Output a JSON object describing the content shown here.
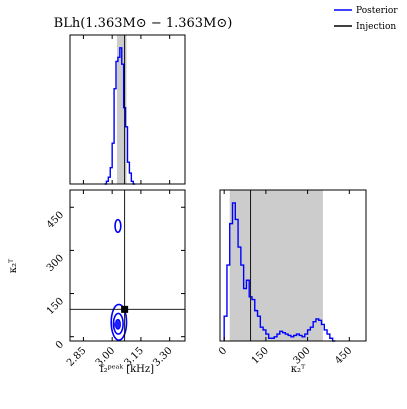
{
  "chart_data": {
    "type": "corner",
    "title": "BLh(1.363M⊙ − 1.363M⊙)",
    "legend": {
      "placement": "top-right",
      "entries": [
        {
          "label": "Posterior",
          "color": "#0000ff",
          "kind": "line"
        },
        {
          "label": "Injection",
          "color": "#000000",
          "kind": "line"
        }
      ]
    },
    "parameters": [
      {
        "key": "f2",
        "xlabel": "f₂ᵖᵉᵃᵏ [kHz]",
        "range": [
          2.78,
          3.38
        ],
        "ticks": [
          2.85,
          3.0,
          3.15,
          3.3
        ],
        "tick_labels": [
          "2.85",
          "3.00",
          "3.15",
          "3.30"
        ],
        "injection": 3.065
      },
      {
        "key": "kappa",
        "xlabel": "κ₂ᵀ",
        "range": [
          -15,
          510
        ],
        "ticks": [
          0,
          150,
          300,
          450
        ],
        "tick_labels": [
          "0",
          "150",
          "300",
          "450"
        ],
        "injection": 95
      }
    ],
    "marginal_f2": {
      "color": "#0000ff",
      "shaded_interval": [
        3.025,
        3.075
      ],
      "bin_edges": [
        2.96,
        2.97,
        2.98,
        2.99,
        3.0,
        3.01,
        3.02,
        3.03,
        3.04,
        3.05,
        3.06,
        3.07,
        3.08,
        3.09,
        3.1,
        3.11,
        3.12
      ],
      "values": [
        0,
        0.02,
        0.05,
        0.12,
        0.3,
        0.7,
        0.9,
        0.93,
        1.0,
        0.88,
        0.56,
        0.42,
        0.16,
        0.08,
        0.02,
        0
      ],
      "ylim": [
        0,
        1.05
      ]
    },
    "marginal_kappa": {
      "color": "#0000ff",
      "shaded_interval": [
        20,
        355
      ],
      "bin_edges": [
        0,
        10,
        20,
        30,
        40,
        50,
        60,
        70,
        80,
        90,
        100,
        110,
        120,
        130,
        140,
        150,
        160,
        170,
        180,
        190,
        200,
        210,
        220,
        230,
        240,
        250,
        260,
        270,
        280,
        290,
        300,
        310,
        320,
        330,
        340,
        350,
        360,
        370,
        380,
        390,
        400
      ],
      "values": [
        0.18,
        0.55,
        0.85,
        1.0,
        0.88,
        0.68,
        0.55,
        0.38,
        0.44,
        0.32,
        0.3,
        0.22,
        0.18,
        0.1,
        0.08,
        0.05,
        0.02,
        0.02,
        0.03,
        0.05,
        0.07,
        0.06,
        0.05,
        0.04,
        0.03,
        0.04,
        0.05,
        0.04,
        0.03,
        0.05,
        0.08,
        0.1,
        0.14,
        0.16,
        0.15,
        0.12,
        0.08,
        0.05,
        0.02,
        0
      ],
      "ylim": [
        0,
        1.05
      ]
    },
    "joint": {
      "color": "#0000ff",
      "contours": [
        {
          "level": "outer",
          "cx": 3.035,
          "cy": 50,
          "rx": 0.04,
          "ry": 62
        },
        {
          "level": "middle",
          "cx": 3.032,
          "cy": 45,
          "rx": 0.025,
          "ry": 36
        },
        {
          "level": "inner-fill",
          "cx": 3.03,
          "cy": 43,
          "rx": 0.012,
          "ry": 16
        },
        {
          "level": "island",
          "cx": 3.03,
          "cy": 385,
          "rx": 0.015,
          "ry": 22
        }
      ],
      "injection_point": [
        3.065,
        95
      ]
    }
  }
}
